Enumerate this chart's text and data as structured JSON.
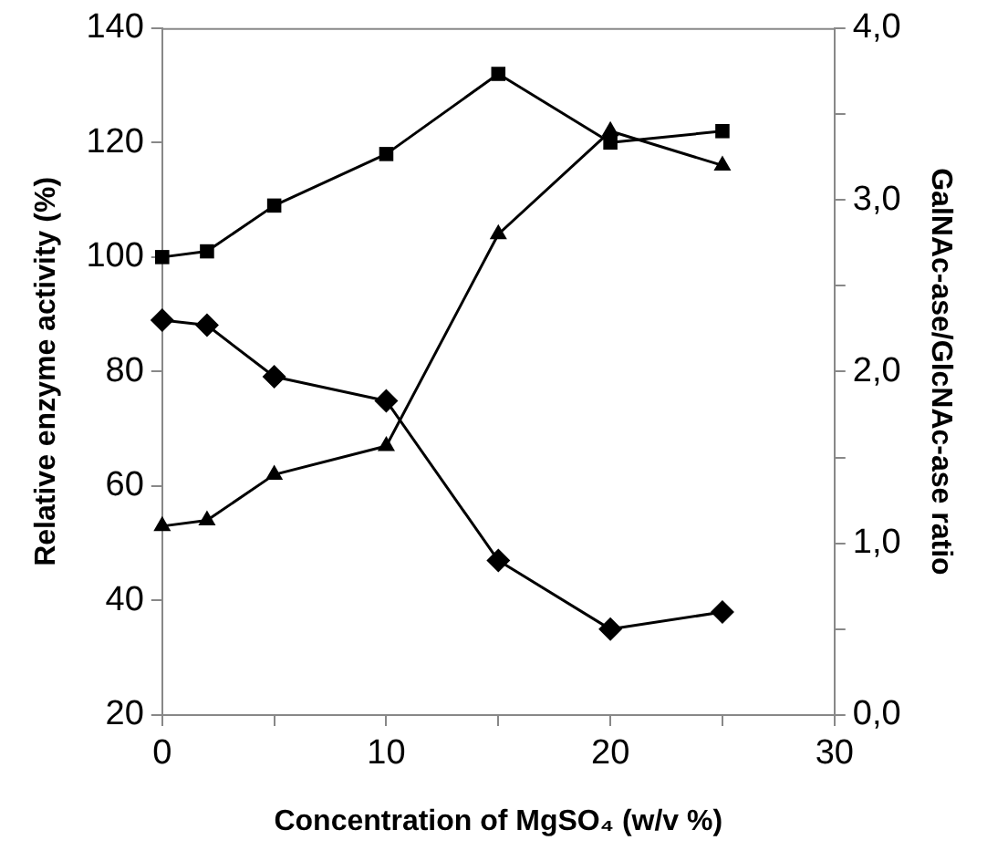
{
  "chart_data": {
    "type": "line",
    "xlabel": "Concentration of MgSO₄ (w/v %)",
    "ylabel": "Relative enzyme activity (%)",
    "y2label": "GalNAc-ase/GlcNAc-ase ratio",
    "x": [
      0,
      2,
      5,
      10,
      15,
      20,
      25
    ],
    "series": [
      {
        "color": "#000000",
        "marker": "square",
        "values": [
          100,
          101,
          109,
          118,
          132,
          120,
          122
        ]
      },
      {
        "color": "#000000",
        "marker": "triangle",
        "values": [
          53,
          54,
          62,
          67,
          104,
          122,
          116
        ]
      },
      {
        "color": "#000000",
        "marker": "diamond",
        "axis": "y2",
        "values": [
          2.3,
          2.27,
          1.97,
          1.83,
          0.9,
          0.5,
          0.6
        ]
      }
    ],
    "xlim": [
      0,
      30
    ],
    "xticks": [
      0,
      {
        "value": 5,
        "label": null
      },
      10,
      {
        "value": 15,
        "label": null
      },
      20,
      {
        "value": 25,
        "label": null
      },
      30
    ],
    "ylim": [
      20,
      140
    ],
    "yticks": [
      20,
      40,
      60,
      80,
      100,
      120,
      140
    ],
    "y2lim": [
      0,
      4
    ],
    "y2ticks": [
      {
        "value": 0,
        "label": "0,0"
      },
      {
        "value": 0.5,
        "label": null
      },
      {
        "value": 1,
        "label": "1,0"
      },
      {
        "value": 1.5,
        "label": null
      },
      {
        "value": 2,
        "label": "2,0"
      },
      {
        "value": 2.5,
        "label": null
      },
      {
        "value": 3,
        "label": "3,0"
      },
      {
        "value": 3.5,
        "label": null
      },
      {
        "value": 4,
        "label": "4,0"
      }
    ],
    "grid": false,
    "legend": false,
    "line_style": "solid"
  }
}
